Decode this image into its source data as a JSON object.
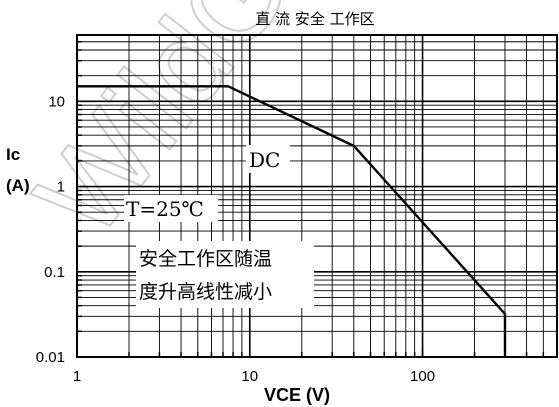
{
  "chart_data": {
    "type": "line",
    "title": "直 流 安全 工作区",
    "xlabel": "VCE (V)",
    "ylabel_line1": "Ic",
    "ylabel_line2": "(A)",
    "xscale": "log",
    "yscale": "log",
    "xlim": [
      1,
      600
    ],
    "ylim": [
      0.01,
      60
    ],
    "grid": true,
    "x_ticks": [
      {
        "value": 1,
        "label": "1"
      },
      {
        "value": 10,
        "label": "10"
      },
      {
        "value": 100,
        "label": "100"
      }
    ],
    "y_ticks": [
      {
        "value": 10,
        "label": "10"
      },
      {
        "value": 1,
        "label": "1"
      },
      {
        "value": 0.1,
        "label": "0.1"
      },
      {
        "value": 0.01,
        "label": "0.01"
      }
    ],
    "series": [
      {
        "x": [
          1,
          7.5,
          40,
          300,
          300
        ],
        "y": [
          15,
          15,
          3,
          0.032,
          0.01
        ]
      }
    ],
    "annotations": {
      "dc_label": "DC",
      "temp_label": "T=25℃",
      "note_line1": "安全工作区随温",
      "note_line2": "度升高线性减小"
    },
    "watermark": "WildGe"
  }
}
